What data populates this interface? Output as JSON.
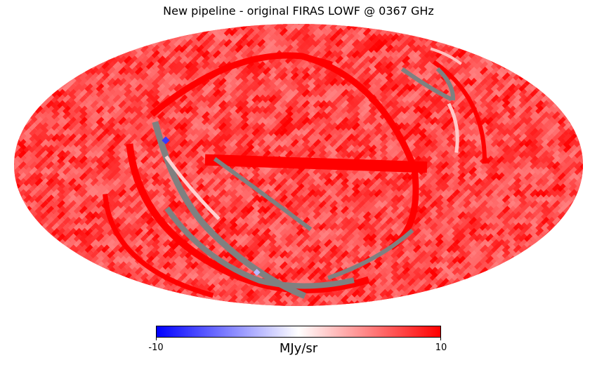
{
  "title": "New pipeline - original FIRAS LOWF @ 0367 GHz",
  "projection": "mollweide",
  "colors": {
    "background": "#ffffff",
    "colormap": [
      "#0000ff",
      "#ffffff",
      "#ff0000"
    ],
    "missing": "#808080"
  },
  "colorbar": {
    "min_label": "-10",
    "max_label": "10",
    "units": "MJy/sr",
    "vmin": -10,
    "vmax": 10
  }
}
